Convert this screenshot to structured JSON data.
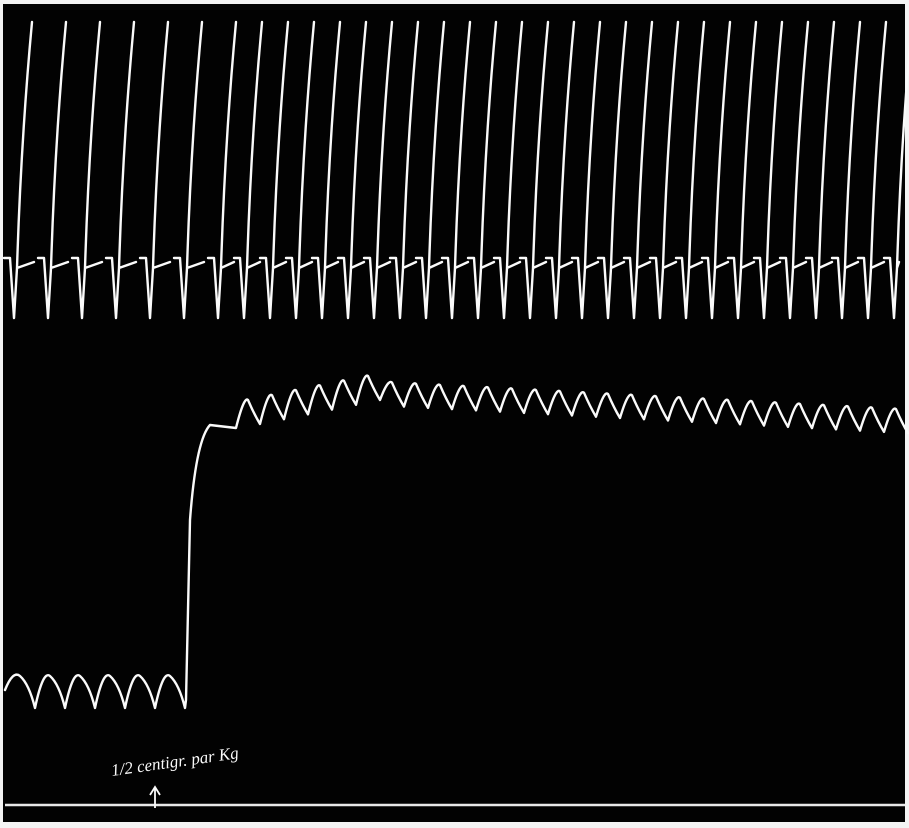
{
  "annotation": "1/2 centigr. par Kg"
}
